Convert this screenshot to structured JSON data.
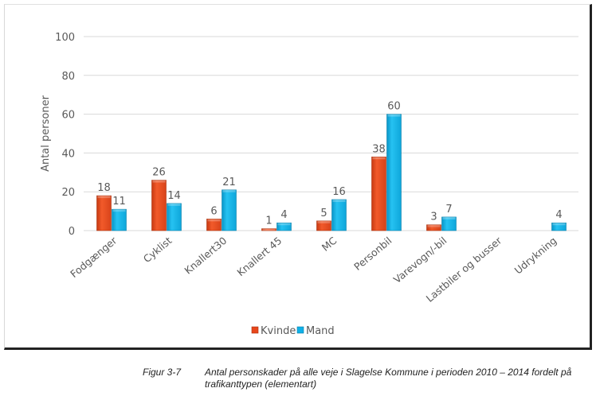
{
  "chart_data": {
    "type": "bar",
    "title": "",
    "xlabel": "",
    "ylabel": "Antal personer",
    "ylim": [
      0,
      100
    ],
    "yticks": [
      0,
      20,
      40,
      60,
      80,
      100
    ],
    "ytick_labels": [
      "0",
      "20",
      "40",
      "60",
      "80",
      "100"
    ],
    "grid": true,
    "legend_position": "bottom-center",
    "categories": [
      "Fodgænger",
      "Cyklist",
      "Knallert30",
      "Knallert 45",
      "MC",
      "Personbil",
      "Varevogn/-bil",
      "Lastbiler og busser",
      "Udrykning"
    ],
    "series": [
      {
        "name": "Kvinde",
        "color": "#e8471c",
        "values": [
          18,
          26,
          6,
          1,
          5,
          38,
          3,
          null,
          null
        ],
        "labels": [
          "18",
          "26",
          "6",
          "1",
          "5",
          "38",
          "3",
          "",
          ""
        ]
      },
      {
        "name": "Mand",
        "color": "#0fb0e8",
        "values": [
          11,
          14,
          21,
          4,
          16,
          60,
          7,
          null,
          4
        ],
        "labels": [
          "11",
          "14",
          "21",
          "4",
          "16",
          "60",
          "7",
          "",
          "4"
        ]
      }
    ]
  },
  "caption": {
    "label": "Figur 3-7",
    "text": "Antal personskader på alle veje i Slagelse Kommune i perioden 2010 – 2014 fordelt på trafikanttypen (elementart)"
  }
}
